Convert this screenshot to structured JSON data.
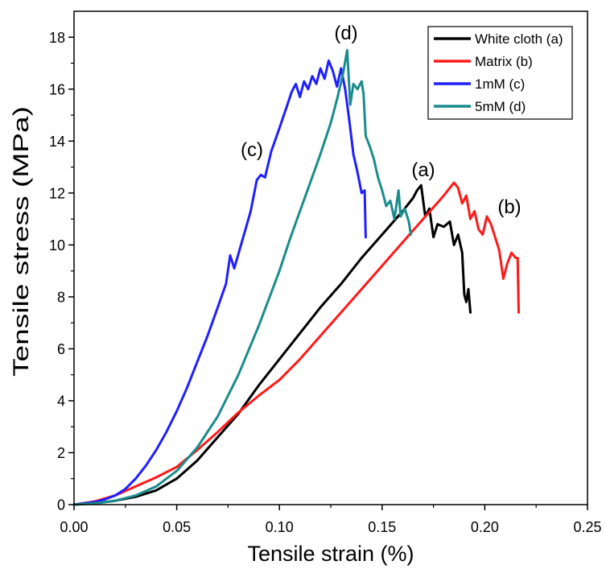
{
  "chart_data": {
    "type": "line",
    "xlabel": "Tensile strain (%)",
    "ylabel": "Tensile stress (MPa)",
    "xlim": [
      0,
      0.25
    ],
    "ylim": [
      0,
      19
    ],
    "x_ticks": [
      0,
      0.05,
      0.1,
      0.15,
      0.2,
      0.25
    ],
    "x_tick_labels": [
      "0.00",
      "0.05",
      "0.10",
      "0.15",
      "0.20",
      "0.25"
    ],
    "y_ticks": [
      0,
      2,
      4,
      6,
      8,
      10,
      12,
      14,
      16,
      18
    ],
    "y_tick_labels": [
      "0",
      "2",
      "4",
      "6",
      "8",
      "10",
      "12",
      "14",
      "16",
      "18"
    ],
    "grid": false,
    "legend": {
      "position": "top-right",
      "frame": true
    },
    "series": [
      {
        "name": "White cloth (a)",
        "color": "#000000",
        "x": [
          0,
          0.01,
          0.02,
          0.03,
          0.04,
          0.05,
          0.06,
          0.07,
          0.08,
          0.09,
          0.1,
          0.11,
          0.12,
          0.13,
          0.14,
          0.15,
          0.16,
          0.165,
          0.167,
          0.169,
          0.171,
          0.173,
          0.175,
          0.177,
          0.18,
          0.183,
          0.185,
          0.187,
          0.189,
          0.19,
          0.191,
          0.192,
          0.193
        ],
        "y": [
          0,
          0.05,
          0.15,
          0.3,
          0.55,
          1.0,
          1.7,
          2.6,
          3.5,
          4.6,
          5.6,
          6.6,
          7.6,
          8.5,
          9.5,
          10.4,
          11.3,
          11.8,
          12.1,
          12.3,
          11.1,
          11.4,
          10.3,
          10.8,
          10.7,
          10.9,
          10.0,
          10.4,
          9.7,
          8.1,
          7.8,
          8.3,
          7.4
        ]
      },
      {
        "name": "Matrix (b)",
        "color": "#ff1a1a",
        "x": [
          0,
          0.01,
          0.02,
          0.03,
          0.04,
          0.05,
          0.06,
          0.07,
          0.08,
          0.09,
          0.1,
          0.11,
          0.12,
          0.13,
          0.14,
          0.15,
          0.16,
          0.17,
          0.18,
          0.185,
          0.187,
          0.189,
          0.191,
          0.193,
          0.195,
          0.197,
          0.199,
          0.201,
          0.203,
          0.205,
          0.207,
          0.209,
          0.211,
          0.213,
          0.215,
          0.216,
          0.2165
        ],
        "y": [
          0,
          0.12,
          0.35,
          0.7,
          1.05,
          1.45,
          2.1,
          2.8,
          3.55,
          4.2,
          4.8,
          5.6,
          6.5,
          7.4,
          8.3,
          9.2,
          10.1,
          11.0,
          11.9,
          12.4,
          12.2,
          11.6,
          11.9,
          11.0,
          11.3,
          10.6,
          10.4,
          11.1,
          10.8,
          10.3,
          9.8,
          8.7,
          9.3,
          9.7,
          9.5,
          9.5,
          7.4
        ]
      },
      {
        "name": "1mM (c)",
        "color": "#1f1fff",
        "x": [
          0,
          0.005,
          0.01,
          0.015,
          0.02,
          0.025,
          0.03,
          0.035,
          0.04,
          0.045,
          0.05,
          0.055,
          0.06,
          0.065,
          0.07,
          0.074,
          0.076,
          0.078,
          0.082,
          0.086,
          0.089,
          0.091,
          0.093,
          0.096,
          0.1,
          0.103,
          0.106,
          0.108,
          0.11,
          0.112,
          0.114,
          0.116,
          0.118,
          0.12,
          0.122,
          0.124,
          0.126,
          0.128,
          0.13,
          0.132,
          0.134,
          0.136,
          0.138,
          0.14,
          0.1415,
          0.142
        ],
        "y": [
          0,
          0.05,
          0.1,
          0.2,
          0.35,
          0.6,
          1.0,
          1.5,
          2.1,
          2.8,
          3.6,
          4.5,
          5.5,
          6.5,
          7.6,
          8.5,
          9.6,
          9.1,
          10.2,
          11.3,
          12.5,
          12.7,
          12.6,
          13.6,
          14.5,
          15.2,
          15.9,
          16.2,
          15.7,
          16.3,
          16.0,
          16.5,
          16.2,
          16.8,
          16.4,
          17.1,
          16.7,
          16.1,
          16.8,
          16.0,
          14.8,
          13.5,
          12.8,
          12.0,
          12.1,
          10.3
        ]
      },
      {
        "name": "5mM (d)",
        "color": "#1a8c8c",
        "x": [
          0,
          0.01,
          0.02,
          0.03,
          0.04,
          0.05,
          0.06,
          0.07,
          0.08,
          0.09,
          0.1,
          0.105,
          0.11,
          0.115,
          0.12,
          0.125,
          0.128,
          0.131,
          0.133,
          0.1345,
          0.136,
          0.138,
          0.14,
          0.141,
          0.142,
          0.144,
          0.146,
          0.148,
          0.15,
          0.152,
          0.154,
          0.156,
          0.158,
          0.159,
          0.161,
          0.163,
          0.164
        ],
        "y": [
          0,
          0.05,
          0.15,
          0.35,
          0.7,
          1.3,
          2.2,
          3.4,
          5.0,
          6.9,
          9.0,
          10.2,
          11.3,
          12.4,
          13.5,
          14.7,
          15.6,
          16.6,
          17.5,
          15.4,
          16.2,
          16.0,
          16.3,
          15.8,
          14.2,
          13.8,
          13.3,
          12.6,
          12.1,
          11.5,
          11.7,
          11.0,
          12.1,
          11.1,
          11.4,
          10.9,
          10.4
        ]
      }
    ],
    "annotations": [
      "(d)",
      "(c)",
      "(a)",
      "(b)"
    ]
  }
}
